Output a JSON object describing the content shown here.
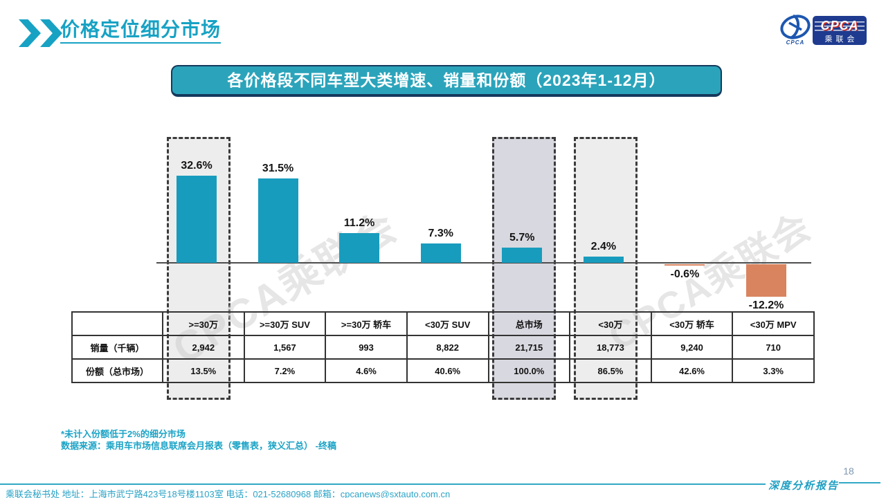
{
  "header": {
    "title": "价格定位细分市场"
  },
  "logo": {
    "emblem_text": "CPCA",
    "box_title": "CPCA",
    "box_subtitle": "乘联会"
  },
  "banner": {
    "title": "各价格段不同车型大类增速、销量和份额（2023年1-12月）"
  },
  "watermark": {
    "text": "CPCA乘联会"
  },
  "chart_data": {
    "type": "bar",
    "title": "各价格段不同车型大类增速、销量和份额（2023年1-12月）",
    "categories": [
      ">=30万",
      ">=30万 SUV",
      ">=30万 轿车",
      "<30万 SUV",
      "总市场",
      "<30万",
      "<30万 轿车",
      "<30万 MPV"
    ],
    "series": [
      {
        "name": "增速",
        "unit": "%",
        "values": [
          32.6,
          31.5,
          11.2,
          7.3,
          5.7,
          2.4,
          -0.6,
          -12.2
        ],
        "labels": [
          "32.6%",
          "31.5%",
          "11.2%",
          "7.3%",
          "5.7%",
          "2.4%",
          "-0.6%",
          "-12.2%"
        ]
      },
      {
        "name": "销量（千辆）",
        "values": [
          2942,
          1567,
          993,
          8822,
          21715,
          18773,
          9240,
          710
        ],
        "labels": [
          "2,942",
          "1,567",
          "993",
          "8,822",
          "21,715",
          "18,773",
          "9,240",
          "710"
        ]
      },
      {
        "name": "份额（总市场）",
        "unit": "%",
        "values": [
          13.5,
          7.2,
          4.6,
          40.6,
          100.0,
          86.5,
          42.6,
          3.3
        ],
        "labels": [
          "13.5%",
          "7.2%",
          "4.6%",
          "40.6%",
          "100.0%",
          "86.5%",
          "42.6%",
          "3.3%"
        ]
      }
    ],
    "highlights": [
      {
        "category": ">=30万",
        "fill": "#ededed"
      },
      {
        "category": "总市场",
        "fill": "#d8d8e0"
      },
      {
        "category": "<30万",
        "fill": "#ededed"
      }
    ],
    "colors": {
      "positive": "#189cbd",
      "negative": "#d9845f"
    },
    "xlabel": "",
    "ylabel": "",
    "ylim": [
      -14,
      36
    ],
    "grid": false,
    "legend_position": "none",
    "baseline": 0
  },
  "table": {
    "row_headers": [
      "销量（千辆）",
      "份额（总市场）"
    ]
  },
  "footnotes": {
    "line1": "*未计入份额低于2%的细分市场",
    "line2": "数据来源：乘用车市场信息联席会月报表（零售表，狭义汇总） -终稿"
  },
  "footer": {
    "left": "乘联会秘书处  地址：上海市武宁路423号18号楼1103室 电话：021-52680968  邮箱：cpcanews@sxtauto.com.cn",
    "report": "深度分析报告",
    "page": "18"
  }
}
